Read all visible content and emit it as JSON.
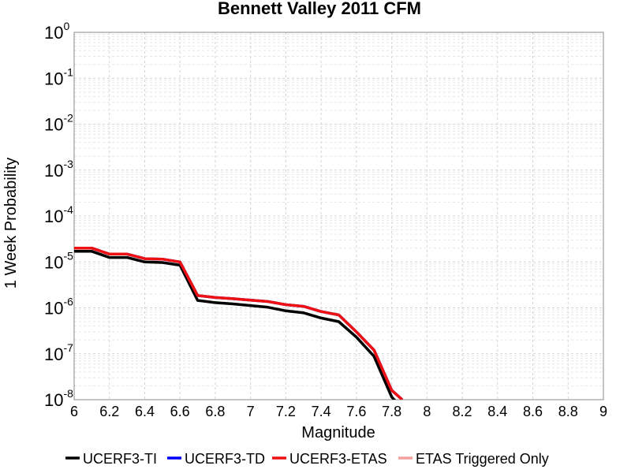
{
  "chart_data": {
    "type": "line",
    "title": "Bennett Valley 2011 CFM",
    "xlabel": "Magnitude",
    "ylabel": "1 Week Probability",
    "xlim": [
      6,
      9
    ],
    "ylim": [
      1e-08,
      1
    ],
    "yscale": "log",
    "grid": true,
    "legend_position": "bottom",
    "x_ticks": [
      "6",
      "6.2",
      "6.4",
      "6.6",
      "6.8",
      "7",
      "7.2",
      "7.4",
      "7.6",
      "7.8",
      "8",
      "8.2",
      "8.4",
      "8.6",
      "8.8",
      "9"
    ],
    "y_ticks": [
      {
        "base": "10",
        "exp": "0",
        "value": 1
      },
      {
        "base": "10",
        "exp": "-1",
        "value": 0.1
      },
      {
        "base": "10",
        "exp": "-2",
        "value": 0.01
      },
      {
        "base": "10",
        "exp": "-3",
        "value": 0.001
      },
      {
        "base": "10",
        "exp": "-4",
        "value": 0.0001
      },
      {
        "base": "10",
        "exp": "-5",
        "value": 1e-05
      },
      {
        "base": "10",
        "exp": "-6",
        "value": 1e-06
      },
      {
        "base": "10",
        "exp": "-7",
        "value": 1e-07
      },
      {
        "base": "10",
        "exp": "-8",
        "value": 1e-08
      }
    ],
    "series": [
      {
        "name": "UCERF3-TI",
        "color": "#000000",
        "x": [
          6.0,
          6.1,
          6.2,
          6.3,
          6.4,
          6.5,
          6.6,
          6.7,
          6.8,
          6.9,
          7.0,
          7.1,
          7.2,
          7.3,
          7.4,
          7.5,
          7.6,
          7.7,
          7.8,
          7.85
        ],
        "y": [
          1.7e-05,
          1.7e-05,
          1.25e-05,
          1.25e-05,
          1e-05,
          9.7e-06,
          8.5e-06,
          1.45e-06,
          1.3e-06,
          1.22e-06,
          1.12e-06,
          1.03e-06,
          8.6e-07,
          7.8e-07,
          6e-07,
          5e-07,
          2.3e-07,
          8.8e-08,
          1.15e-08,
          7e-09
        ]
      },
      {
        "name": "UCERF3-TD",
        "color": "#0000ff",
        "x": [
          6.0,
          6.1,
          6.2,
          6.3,
          6.4,
          6.5,
          6.6,
          6.7,
          6.8,
          6.9,
          7.0,
          7.1,
          7.2,
          7.3,
          7.4,
          7.5,
          7.6,
          7.7,
          7.8,
          7.86
        ],
        "y": [
          2e-05,
          2e-05,
          1.48e-05,
          1.48e-05,
          1.18e-05,
          1.15e-05,
          1e-05,
          1.85e-06,
          1.68e-06,
          1.58e-06,
          1.47e-06,
          1.37e-06,
          1.17e-06,
          1.08e-06,
          8.3e-07,
          7e-07,
          3e-07,
          1.2e-07,
          1.6e-08,
          1e-08
        ]
      },
      {
        "name": "UCERF3-ETAS",
        "color": "#ee1111",
        "x": [
          6.0,
          6.1,
          6.2,
          6.3,
          6.4,
          6.5,
          6.6,
          6.7,
          6.8,
          6.9,
          7.0,
          7.1,
          7.2,
          7.3,
          7.4,
          7.5,
          7.6,
          7.7,
          7.8,
          7.86
        ],
        "y": [
          2e-05,
          2e-05,
          1.48e-05,
          1.48e-05,
          1.18e-05,
          1.15e-05,
          1e-05,
          1.85e-06,
          1.68e-06,
          1.58e-06,
          1.47e-06,
          1.37e-06,
          1.17e-06,
          1.08e-06,
          8.3e-07,
          7e-07,
          3e-07,
          1.2e-07,
          1.6e-08,
          1e-08
        ]
      },
      {
        "name": "ETAS Triggered Only",
        "color": "#f4a0a0",
        "x": [],
        "y": []
      }
    ]
  }
}
